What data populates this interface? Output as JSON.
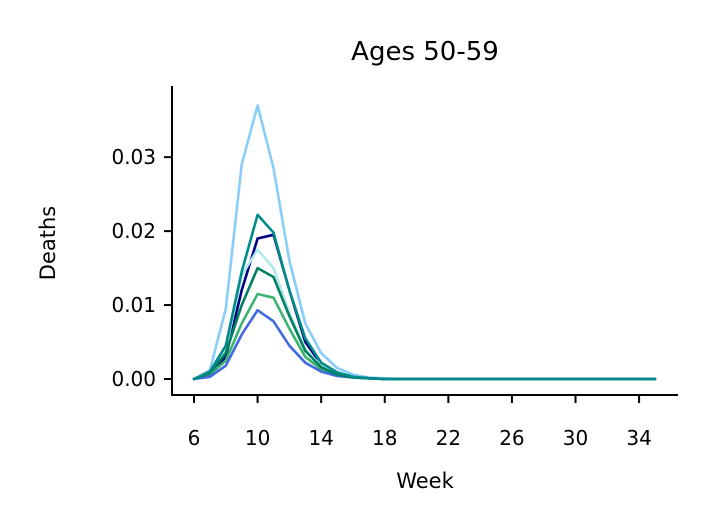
{
  "chart_data": {
    "type": "line",
    "title": "Ages 50-59",
    "xlabel": "Week",
    "ylabel": "Deaths",
    "xlim": [
      6,
      35
    ],
    "ylim": [
      0,
      0.038
    ],
    "grid": false,
    "x_ticks": [
      6,
      10,
      14,
      18,
      22,
      26,
      30,
      34
    ],
    "y_ticks": [
      {
        "value": 0.0,
        "label": "0.00"
      },
      {
        "value": 0.01,
        "label": "0.01"
      },
      {
        "value": 0.02,
        "label": "0.02"
      },
      {
        "value": 0.03,
        "label": "0.03"
      }
    ],
    "x": [
      6,
      7,
      8,
      9,
      10,
      11,
      12,
      13,
      14,
      15,
      16,
      17,
      18,
      19,
      20,
      21,
      22,
      23,
      24,
      25,
      26,
      27,
      28,
      29,
      30,
      31,
      32,
      33,
      34,
      35
    ],
    "series": [
      {
        "color": "#87cefa",
        "values": [
          0.0,
          0.0012,
          0.0095,
          0.029,
          0.037,
          0.0285,
          0.016,
          0.0075,
          0.0035,
          0.0015,
          0.0006,
          0.0002,
          0.0001,
          0,
          0,
          0,
          0,
          0,
          0,
          0,
          0,
          0,
          0,
          0,
          0,
          0,
          0,
          0,
          0,
          0
        ]
      },
      {
        "color": "#000080",
        "values": [
          0.0,
          0.0007,
          0.003,
          0.012,
          0.019,
          0.0195,
          0.012,
          0.005,
          0.002,
          0.0008,
          0.0003,
          0.0001,
          0,
          0,
          0,
          0,
          0,
          0,
          0,
          0,
          0,
          0,
          0,
          0,
          0,
          0,
          0,
          0,
          0,
          0
        ]
      },
      {
        "color": "#b0e8ee",
        "values": [
          0.0,
          0.001,
          0.004,
          0.014,
          0.0175,
          0.015,
          0.009,
          0.004,
          0.0018,
          0.0007,
          0.0003,
          0.0001,
          0,
          0,
          0,
          0,
          0,
          0,
          0,
          0,
          0,
          0,
          0,
          0,
          0,
          0,
          0,
          0,
          0,
          0
        ]
      },
      {
        "color": "#3cb371",
        "values": [
          0.0,
          0.0006,
          0.0025,
          0.0075,
          0.0115,
          0.011,
          0.0068,
          0.003,
          0.0013,
          0.0005,
          0.0002,
          0.0001,
          0,
          0,
          0,
          0,
          0,
          0,
          0,
          0,
          0,
          0,
          0,
          0,
          0,
          0,
          0,
          0,
          0,
          0
        ]
      },
      {
        "color": "#4169e1",
        "values": [
          0.0,
          0.0003,
          0.0018,
          0.006,
          0.0093,
          0.0078,
          0.0045,
          0.0022,
          0.001,
          0.0004,
          0.0002,
          0.0001,
          0,
          0,
          0,
          0,
          0,
          0,
          0,
          0,
          0,
          0,
          0,
          0,
          0,
          0,
          0,
          0,
          0,
          0
        ]
      },
      {
        "color": "#00805f",
        "values": [
          0.0,
          0.0008,
          0.0035,
          0.01,
          0.015,
          0.0138,
          0.0085,
          0.0038,
          0.0016,
          0.0006,
          0.0002,
          0.0001,
          0,
          0,
          0,
          0,
          0,
          0,
          0,
          0,
          0,
          0,
          0,
          0,
          0,
          0,
          0,
          0,
          0,
          0
        ]
      },
      {
        "color": "#008b8b",
        "values": [
          0.0,
          0.001,
          0.0045,
          0.0145,
          0.0222,
          0.0198,
          0.012,
          0.0055,
          0.0022,
          0.0009,
          0.0003,
          0.0001,
          0,
          0,
          0,
          0,
          0,
          0,
          0,
          0,
          0,
          0,
          0,
          0,
          0,
          0,
          0,
          0,
          0,
          0
        ]
      }
    ]
  }
}
